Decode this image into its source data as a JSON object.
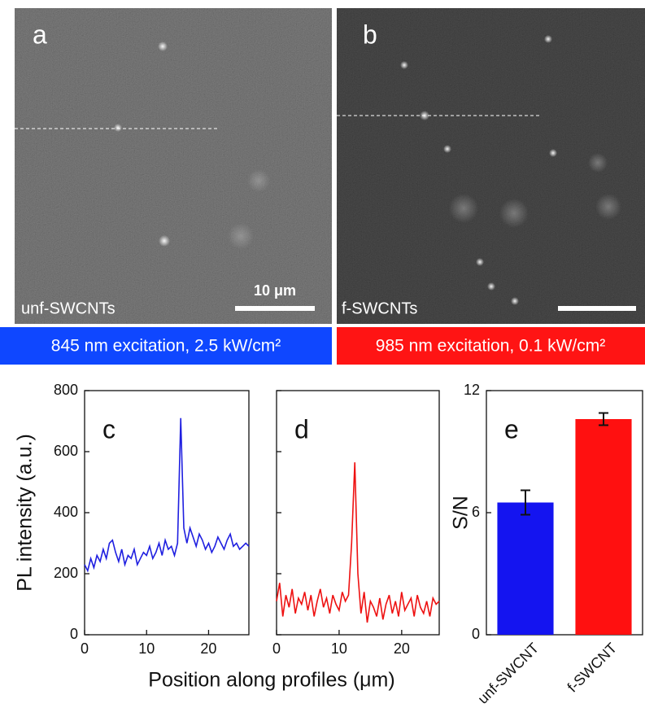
{
  "images": [
    {
      "label": "a",
      "sample": "unf-SWCNTs",
      "scale_bar": "10 μm",
      "caption": "845 nm excitation, 2.5 kW/cm²"
    },
    {
      "label": "b",
      "sample": "f-SWCNTs",
      "caption": "985 nm excitation, 0.1 kW/cm²"
    }
  ],
  "y_axis_label": "PL intensity (a.u.)",
  "x_axis_label": "Position along profiles (μm)",
  "chart_data": [
    {
      "type": "line",
      "panel": "c",
      "color": "#1f1fe0",
      "x": [
        0,
        0.5,
        1,
        1.5,
        2,
        2.5,
        3,
        3.5,
        4,
        4.5,
        5,
        5.5,
        6,
        6.5,
        7,
        7.5,
        8,
        8.5,
        9,
        9.5,
        10,
        10.5,
        11,
        11.5,
        12,
        12.5,
        13,
        13.5,
        14,
        14.5,
        15,
        15.5,
        16,
        16.5,
        17,
        17.5,
        18,
        18.5,
        19,
        19.5,
        20,
        20.5,
        21,
        21.5,
        22,
        22.5,
        23,
        23.5,
        24,
        24.5,
        25,
        25.5,
        26,
        26.5
      ],
      "values": [
        230,
        210,
        250,
        220,
        260,
        240,
        280,
        250,
        300,
        310,
        270,
        240,
        280,
        230,
        260,
        250,
        280,
        230,
        250,
        270,
        260,
        290,
        250,
        270,
        300,
        260,
        310,
        280,
        290,
        260,
        300,
        710,
        350,
        300,
        350,
        320,
        290,
        330,
        310,
        280,
        300,
        270,
        290,
        320,
        300,
        280,
        310,
        330,
        290,
        300,
        280,
        290,
        300,
        290
      ],
      "xlim": [
        0,
        26.5
      ],
      "xticks": [
        0,
        10,
        20
      ],
      "ylim": [
        0,
        800
      ],
      "yticks": [
        0,
        200,
        400,
        600,
        800
      ]
    },
    {
      "type": "line",
      "panel": "d",
      "color": "#ee1111",
      "x": [
        0,
        0.5,
        1,
        1.5,
        2,
        2.5,
        3,
        3.5,
        4,
        4.5,
        5,
        5.5,
        6,
        6.5,
        7,
        7.5,
        8,
        8.5,
        9,
        9.5,
        10,
        10.5,
        11,
        11.5,
        12,
        12.5,
        13,
        13.5,
        14,
        14.5,
        15,
        15.5,
        16,
        16.5,
        17,
        17.5,
        18,
        18.5,
        19,
        19.5,
        20,
        20.5,
        21,
        21.5,
        22,
        22.5,
        23,
        23.5,
        24,
        24.5,
        25,
        25.5,
        26
      ],
      "values": [
        110,
        170,
        60,
        130,
        90,
        150,
        70,
        120,
        100,
        140,
        80,
        130,
        60,
        110,
        150,
        90,
        120,
        70,
        130,
        100,
        80,
        140,
        110,
        130,
        300,
        565,
        200,
        70,
        140,
        40,
        110,
        90,
        60,
        120,
        50,
        100,
        130,
        70,
        110,
        60,
        140,
        80,
        100,
        120,
        60,
        130,
        90,
        70,
        110,
        60,
        120,
        100,
        110
      ],
      "xlim": [
        0,
        26
      ],
      "xticks": [
        0,
        10,
        20
      ],
      "ylim": [
        0,
        800
      ]
    },
    {
      "type": "bar",
      "panel": "e",
      "y_axis_label": "S/N",
      "categories": [
        "unf-SWCNT",
        "f-SWCNT"
      ],
      "values": [
        6.5,
        10.6
      ],
      "errors": [
        0.6,
        0.3
      ],
      "colors": [
        "#1414f0",
        "#ff1010"
      ],
      "ylim": [
        0,
        12
      ],
      "yticks": [
        0,
        6,
        12
      ]
    }
  ]
}
